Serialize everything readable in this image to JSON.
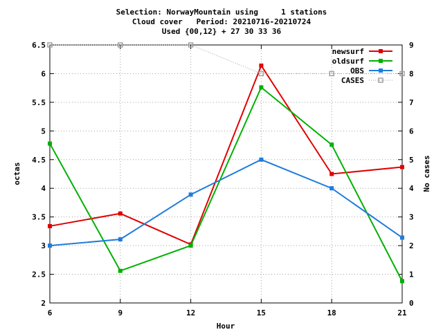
{
  "title_lines": [
    "Selection: NorwayMountain using     1 stations",
    "Cloud cover   Period: 20210716-20210724",
    "Used {00,12} + 27 30 33 36"
  ],
  "chart_data": {
    "type": "line",
    "xlabel": "Hour",
    "ylabel": "octas",
    "y2label": "No cases",
    "x": [
      6,
      9,
      12,
      15,
      18,
      21
    ],
    "xlim": [
      6,
      21
    ],
    "ylim": [
      2,
      6.5
    ],
    "y2lim": [
      0,
      9
    ],
    "xticks": [
      6,
      9,
      12,
      15,
      18,
      21
    ],
    "yticks": [
      2,
      2.5,
      3,
      3.5,
      4,
      4.5,
      5,
      5.5,
      6,
      6.5
    ],
    "y2ticks": [
      0,
      1,
      2,
      3,
      4,
      5,
      6,
      7,
      8,
      9
    ],
    "grid": true,
    "legend_position": "top-right",
    "series": [
      {
        "name": "newsurf",
        "color": "#e00000",
        "axis": "left",
        "marker": "filled-square",
        "values": [
          3.34,
          3.56,
          3.02,
          6.14,
          4.25,
          4.37
        ]
      },
      {
        "name": "oldsurf",
        "color": "#00b000",
        "axis": "left",
        "marker": "filled-square",
        "values": [
          4.78,
          2.56,
          3.0,
          5.76,
          4.76,
          2.38
        ]
      },
      {
        "name": "OBS",
        "color": "#1e7cdc",
        "axis": "left",
        "marker": "filled-square",
        "values": [
          3.0,
          3.11,
          3.89,
          4.5,
          4.0,
          3.14
        ]
      },
      {
        "name": "CASES",
        "color": "#a0a0a0",
        "axis": "right",
        "marker": "open-square",
        "dotted": true,
        "values": [
          9,
          9,
          9,
          8,
          8,
          8
        ]
      }
    ]
  }
}
